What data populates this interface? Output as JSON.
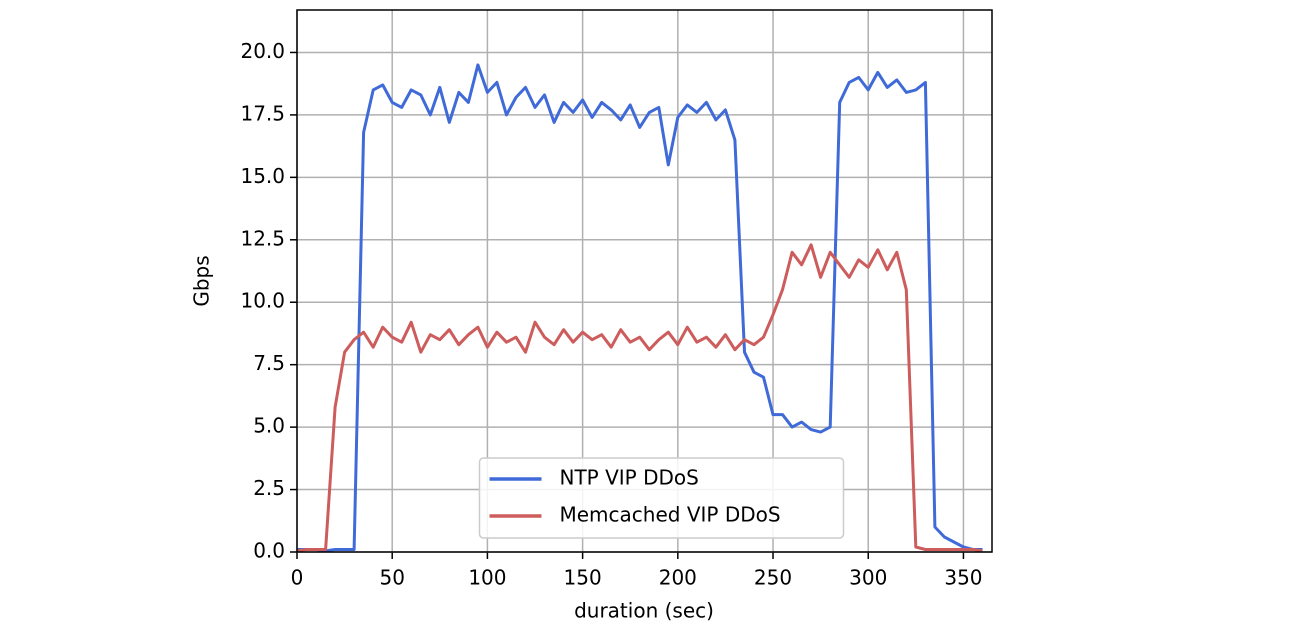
{
  "chart_data": {
    "type": "line",
    "xlabel": "duration (sec)",
    "ylabel": "Gbps",
    "x": [
      0,
      5,
      10,
      15,
      20,
      25,
      30,
      35,
      40,
      45,
      50,
      55,
      60,
      65,
      70,
      75,
      80,
      85,
      90,
      95,
      100,
      105,
      110,
      115,
      120,
      125,
      130,
      135,
      140,
      145,
      150,
      155,
      160,
      165,
      170,
      175,
      180,
      185,
      190,
      195,
      200,
      205,
      210,
      215,
      220,
      225,
      230,
      235,
      240,
      245,
      250,
      255,
      260,
      265,
      270,
      275,
      280,
      285,
      290,
      295,
      300,
      305,
      310,
      315,
      320,
      325,
      330,
      335,
      340,
      345,
      350,
      355,
      360
    ],
    "series": [
      {
        "name": "NTP VIP DDoS",
        "color": "#3f6ad8",
        "values": [
          0.1,
          0.1,
          0.1,
          0.05,
          0.1,
          0.1,
          0.1,
          16.8,
          18.5,
          18.7,
          18.0,
          17.8,
          18.5,
          18.3,
          17.5,
          18.6,
          17.2,
          18.4,
          18.0,
          19.5,
          18.4,
          18.8,
          17.5,
          18.2,
          18.6,
          17.8,
          18.3,
          17.2,
          18.0,
          17.6,
          18.1,
          17.4,
          18.0,
          17.7,
          17.3,
          17.9,
          17.0,
          17.6,
          17.8,
          15.5,
          17.4,
          17.9,
          17.6,
          18.0,
          17.3,
          17.7,
          16.5,
          8.0,
          7.2,
          7.0,
          5.5,
          5.5,
          5.0,
          5.2,
          4.9,
          4.8,
          5.0,
          18.0,
          18.8,
          19.0,
          18.5,
          19.2,
          18.6,
          18.9,
          18.4,
          18.5,
          18.8,
          1.0,
          0.6,
          0.4,
          0.2,
          0.1,
          0.1
        ]
      },
      {
        "name": "Memcached VIP DDoS",
        "color": "#cd5c5c",
        "values": [
          0.05,
          0.1,
          0.1,
          0.1,
          5.8,
          8.0,
          8.5,
          8.8,
          8.2,
          9.0,
          8.6,
          8.4,
          9.2,
          8.0,
          8.7,
          8.5,
          8.9,
          8.3,
          8.7,
          9.0,
          8.2,
          8.8,
          8.4,
          8.6,
          8.0,
          9.2,
          8.6,
          8.3,
          8.9,
          8.4,
          8.8,
          8.5,
          8.7,
          8.2,
          8.9,
          8.4,
          8.6,
          8.1,
          8.5,
          8.8,
          8.3,
          9.0,
          8.4,
          8.6,
          8.2,
          8.7,
          8.1,
          8.5,
          8.3,
          8.6,
          9.5,
          10.5,
          12.0,
          11.5,
          12.3,
          11.0,
          12.0,
          11.5,
          11.0,
          11.7,
          11.4,
          12.1,
          11.3,
          12.0,
          10.5,
          0.2,
          0.1,
          0.1,
          0.1,
          0.1,
          0.1,
          0.1,
          0.05
        ]
      }
    ],
    "xlim": [
      0,
      365
    ],
    "xticks": [
      0,
      50,
      100,
      150,
      200,
      250,
      300,
      350
    ],
    "ylim": [
      0,
      21.7
    ],
    "yticks": [
      {
        "value": 0,
        "label": "0.0"
      },
      {
        "value": 2.5,
        "label": "2.5"
      },
      {
        "value": 5,
        "label": "5.0"
      },
      {
        "value": 7.5,
        "label": "7.5"
      },
      {
        "value": 10,
        "label": "10.0"
      },
      {
        "value": 12.5,
        "label": "12.5"
      },
      {
        "value": 15,
        "label": "15.0"
      },
      {
        "value": 17.5,
        "label": "17.5"
      },
      {
        "value": 20,
        "label": "20.0"
      }
    ],
    "grid": true,
    "legend": "lower center"
  }
}
